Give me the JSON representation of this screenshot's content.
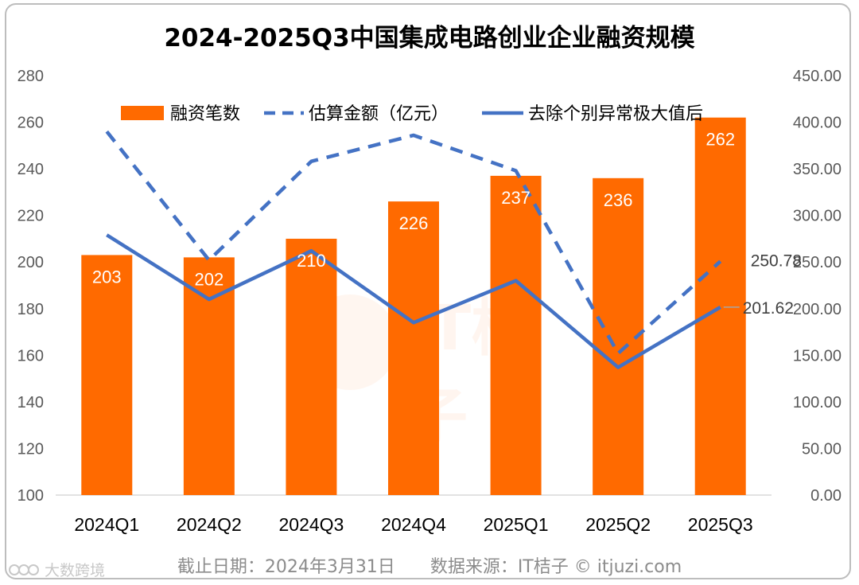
{
  "title": "2024-2025Q3中国集成电路创业企业融资规模",
  "footer": {
    "date_note": "截止日期：2024年3月31日",
    "source_note": "数据来源：IT桔子 © itjuzi.com"
  },
  "brand_watermark": "大数跨境",
  "colors": {
    "bar": "#ff6a00",
    "line": "#4472c4",
    "grid": "#e6e6e6"
  },
  "chart_data": {
    "type": "bar",
    "title": "2024-2025Q3中国集成电路创业企业融资规模",
    "categories": [
      "2024Q1",
      "2024Q2",
      "2024Q3",
      "2024Q4",
      "2025Q1",
      "2025Q2",
      "2025Q3"
    ],
    "series": [
      {
        "name": "融资笔数",
        "type": "bar",
        "axis": "left",
        "values": [
          203,
          202,
          210,
          226,
          237,
          236,
          262
        ],
        "labels": [
          "203",
          "202",
          "210",
          "226",
          "237",
          "236",
          "262"
        ]
      },
      {
        "name": "估算金额（亿元）",
        "type": "line",
        "style": "dashed",
        "axis": "right",
        "values": [
          390,
          252,
          358,
          386,
          348,
          152,
          250.78
        ]
      },
      {
        "name": "去除个别异常极大值后",
        "type": "line",
        "style": "solid",
        "axis": "right",
        "values": [
          279,
          210,
          262,
          185,
          230,
          137,
          201.62
        ]
      }
    ],
    "line_labels": {
      "dashed_last": "250.78",
      "solid_last": "201.62"
    },
    "y_left": {
      "min": 100,
      "max": 280,
      "ticks": [
        "100",
        "120",
        "140",
        "160",
        "180",
        "200",
        "220",
        "240",
        "260",
        "280"
      ]
    },
    "y_right": {
      "min": 0,
      "max": 450,
      "ticks": [
        "0.00",
        "50.00",
        "100.00",
        "150.00",
        "200.00",
        "250.00",
        "300.00",
        "350.00",
        "400.00",
        "450.00"
      ]
    },
    "legend_position": "top",
    "legend": [
      "融资笔数",
      "估算金额（亿元）",
      "去除个别异常极大值后"
    ]
  }
}
